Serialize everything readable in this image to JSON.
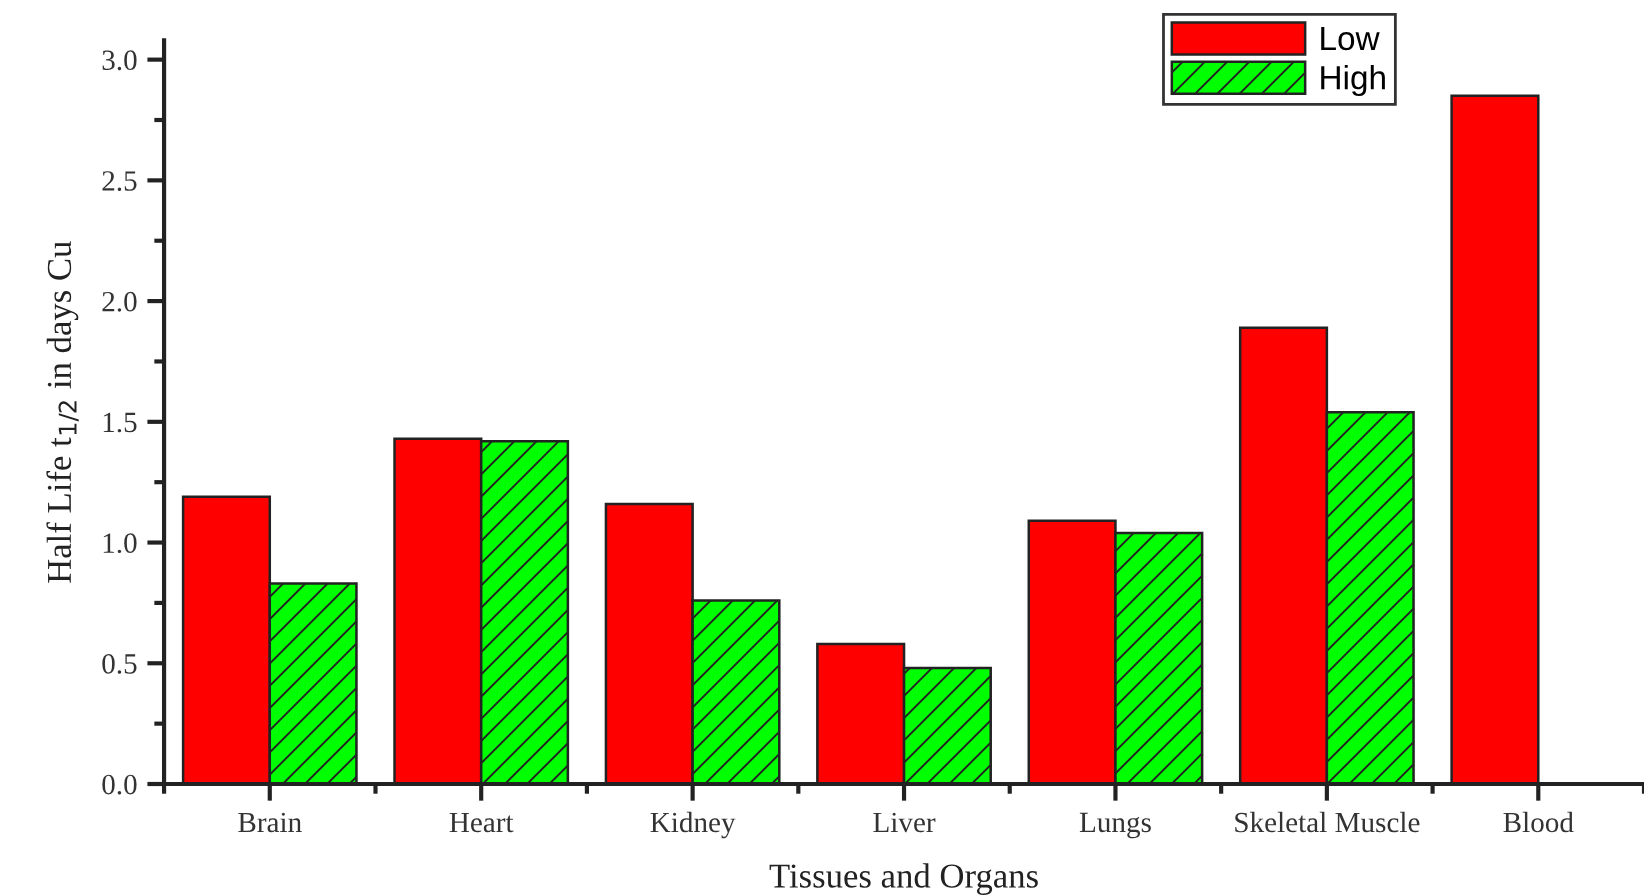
{
  "chart_data": {
    "type": "bar",
    "xlabel": "Tissues and Organs",
    "ylabel": "Half Life t$_{1/2}$ in days Cu",
    "categories": [
      "Brain",
      "Heart",
      "Kidney",
      "Liver",
      "Lungs",
      "Skeletal Muscle",
      "Blood"
    ],
    "series": [
      {
        "name": "Low",
        "color": "#ff0000",
        "values": [
          1.19,
          1.43,
          1.16,
          0.58,
          1.09,
          1.89,
          2.85
        ]
      },
      {
        "name": "High",
        "color": "#00ff00",
        "values": [
          0.83,
          1.42,
          0.76,
          0.48,
          1.04,
          1.54,
          null
        ]
      }
    ],
    "ylim": [
      0,
      3.08
    ],
    "yticks": [
      {
        "value": 0,
        "label": "0.0"
      },
      {
        "value": 0.25,
        "label": null
      },
      {
        "value": 0.5,
        "label": "0.5"
      },
      {
        "value": 0.75,
        "label": null
      },
      {
        "value": 1,
        "label": "1.0"
      },
      {
        "value": 1.25,
        "label": null
      },
      {
        "value": 1.5,
        "label": "1.5"
      },
      {
        "value": 1.75,
        "label": null
      },
      {
        "value": 2,
        "label": "2.0"
      },
      {
        "value": 2.25,
        "label": null
      },
      {
        "value": 2.5,
        "label": "2.5"
      },
      {
        "value": 2.75,
        "label": null
      },
      {
        "value": 3,
        "label": "3.0"
      }
    ],
    "legend": "top right"
  }
}
